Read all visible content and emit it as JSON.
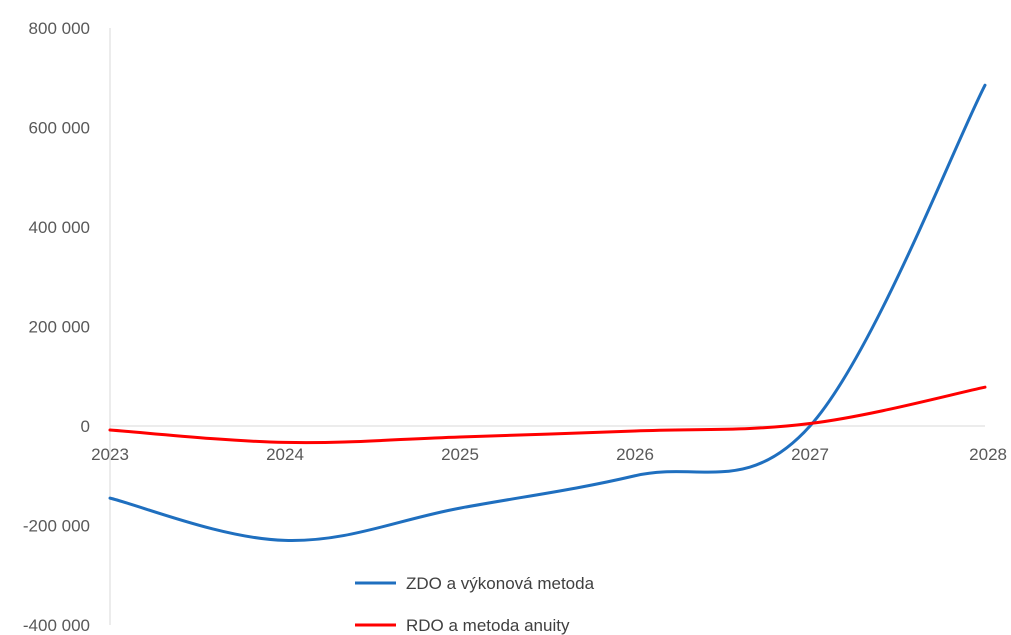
{
  "chart_data": {
    "type": "line",
    "title": "",
    "xlabel": "",
    "ylabel": "",
    "x": [
      "2023",
      "2024",
      "2025",
      "2026",
      "2027",
      "2028"
    ],
    "ylim": [
      -400000,
      800000
    ],
    "y_ticks": [
      800000,
      600000,
      400000,
      200000,
      0,
      -200000,
      -400000
    ],
    "y_tick_labels": [
      "800 000",
      "600 000",
      "400 000",
      "200 000",
      "0",
      "-200 000",
      "-400 000"
    ],
    "grid": false,
    "legend_position": "bottom",
    "series": [
      {
        "name": "ZDO a výkonová metoda",
        "color": "#1f6fbf",
        "values": [
          -145000,
          -230000,
          -165000,
          -100000,
          0,
          685000
        ]
      },
      {
        "name": "RDO a metoda anuity",
        "color": "#ff0000",
        "values": [
          -8000,
          -33000,
          -22000,
          -10000,
          5000,
          78000
        ]
      }
    ]
  }
}
